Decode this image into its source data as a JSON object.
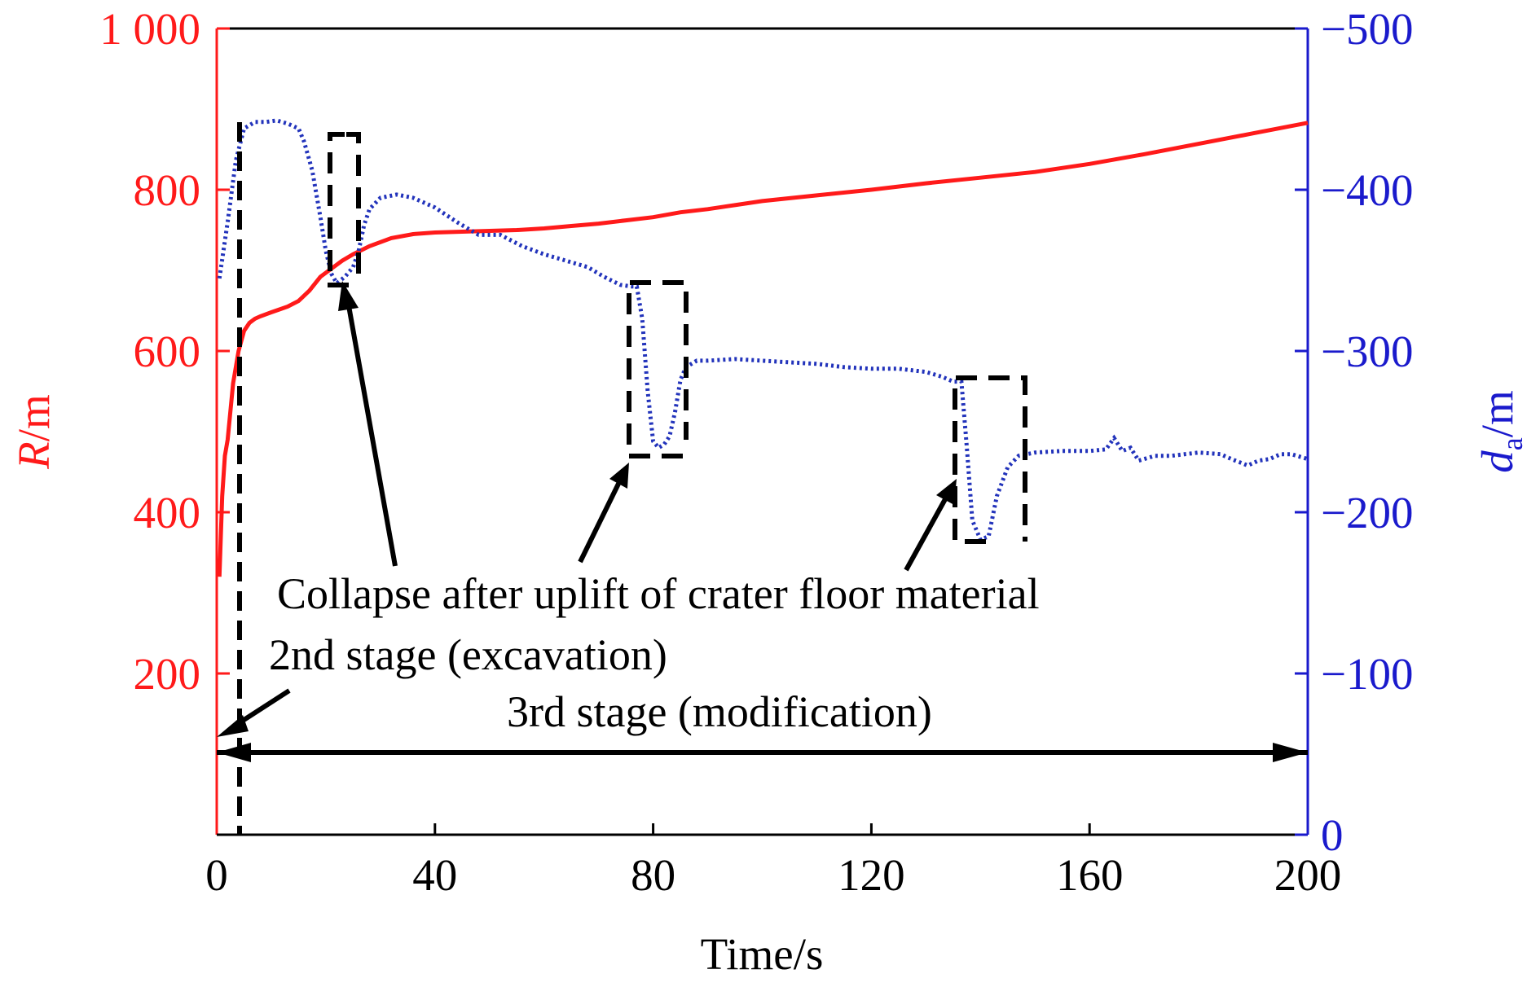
{
  "chart_data": {
    "type": "line",
    "x_axis": {
      "label": "Time/s",
      "range": [
        0,
        200
      ],
      "ticks": [
        0,
        40,
        80,
        120,
        160,
        200
      ],
      "tick_labels": [
        "0",
        "40",
        "80",
        "120",
        "160",
        "200"
      ]
    },
    "y_left": {
      "label_italic": "R",
      "label_unit": "/m",
      "color": "#ff1a1a",
      "range": [
        0,
        1000
      ],
      "ticks": [
        200,
        400,
        600,
        800,
        1000
      ],
      "tick_labels": [
        "200",
        "400",
        "600",
        "800",
        "1 000"
      ]
    },
    "y_right": {
      "label_italic": "d",
      "label_sub": "a",
      "label_unit": "/m",
      "color": "#1a1acc",
      "range": [
        0,
        -500
      ],
      "ticks": [
        0,
        -100,
        -200,
        -300,
        -400,
        -500
      ],
      "tick_labels": [
        "0",
        "−100",
        "−200",
        "−300",
        "−400",
        "−500"
      ]
    },
    "series": [
      {
        "axis": "left",
        "color": "#ff1a1a",
        "style": "solid",
        "x": [
          0.5,
          1,
          1.5,
          2,
          3,
          4,
          5,
          6,
          7,
          8,
          10,
          13,
          15,
          17,
          19,
          21,
          23,
          25,
          28,
          32,
          36,
          40,
          45,
          50,
          55,
          60,
          65,
          70,
          75,
          80,
          85,
          90,
          100,
          110,
          120,
          130,
          140,
          150,
          160,
          170,
          180,
          190,
          200
        ],
        "y": [
          320,
          420,
          470,
          490,
          560,
          600,
          625,
          635,
          640,
          643,
          648,
          655,
          662,
          675,
          692,
          702,
          712,
          720,
          730,
          740,
          745,
          747,
          748,
          749,
          750,
          752,
          755,
          758,
          762,
          766,
          772,
          776,
          786,
          793,
          800,
          808,
          815,
          822,
          832,
          844,
          857,
          870,
          883
        ]
      },
      {
        "axis": "right",
        "color": "#2233bb",
        "style": "dotted",
        "x": [
          0.5,
          2,
          3.5,
          5,
          7,
          9,
          11,
          13,
          15,
          16,
          17.5,
          19,
          20,
          21,
          22,
          23.5,
          25,
          26,
          27,
          28,
          30,
          33,
          36,
          40,
          44,
          48,
          52,
          56,
          60,
          64,
          68,
          71,
          74,
          76,
          77,
          78,
          79,
          80,
          81,
          82,
          83,
          84,
          85,
          86,
          88,
          90,
          95,
          100,
          105,
          110,
          115,
          120,
          125,
          130,
          133,
          135,
          136.5,
          137.5,
          138.5,
          140,
          141.5,
          143,
          145,
          147,
          150,
          155,
          160,
          163,
          164.5,
          166,
          167.5,
          169,
          172,
          175,
          180,
          184,
          186,
          189,
          191,
          193,
          195,
          197,
          200
        ],
        "y": [
          -345,
          -380,
          -418,
          -438,
          -442,
          -442,
          -443,
          -441,
          -438,
          -430,
          -412,
          -383,
          -362,
          -348,
          -342,
          -346,
          -352,
          -362,
          -378,
          -388,
          -395,
          -397,
          -395,
          -389,
          -380,
          -372,
          -372,
          -365,
          -360,
          -356,
          -352,
          -346,
          -341,
          -340,
          -340,
          -320,
          -275,
          -244,
          -240,
          -242,
          -247,
          -262,
          -282,
          -290,
          -294,
          -294,
          -295,
          -294,
          -293,
          -292,
          -290,
          -289,
          -289,
          -287,
          -284,
          -281,
          -281,
          -240,
          -195,
          -183,
          -185,
          -210,
          -228,
          -235,
          -237,
          -238,
          -238,
          -239,
          -246,
          -238,
          -240,
          -232,
          -235,
          -235,
          -237,
          -236,
          -233,
          -229,
          -232,
          -233,
          -236,
          -236,
          -233
        ]
      }
    ],
    "annotations": {
      "collapse": "Collapse after uplift of crater floor material",
      "stage2": "2nd stage (excavation)",
      "stage3": "3rd stage (modification)"
    },
    "grid": false,
    "legend": "none"
  }
}
